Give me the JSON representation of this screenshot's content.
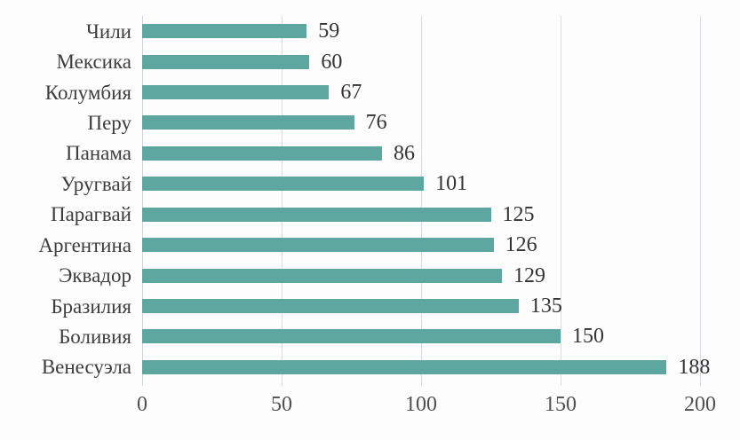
{
  "chart_data": {
    "type": "bar",
    "orientation": "horizontal",
    "title": "",
    "xlabel": "",
    "ylabel": "",
    "categories": [
      "Чили",
      "Мексика",
      "Колумбия",
      "Перу",
      "Панама",
      "Уругвай",
      "Парагвай",
      "Аргентина",
      "Эквадор",
      "Бразилия",
      "Боливия",
      "Венесуэла"
    ],
    "values": [
      59,
      60,
      67,
      76,
      86,
      101,
      125,
      126,
      129,
      135,
      150,
      188
    ],
    "x_ticks": [
      0,
      50,
      100,
      150,
      200
    ],
    "xlim": [
      0,
      200
    ],
    "grid": "vertical",
    "legend": "none",
    "data_labels": true,
    "bar_color": "#5ea6a0",
    "gridline_color": "#d9dce4",
    "category_label_color": "#3d3d3d",
    "value_label_color": "#333333",
    "tick_label_color": "#4f4f4f",
    "background_color": "#fdfdfe"
  }
}
